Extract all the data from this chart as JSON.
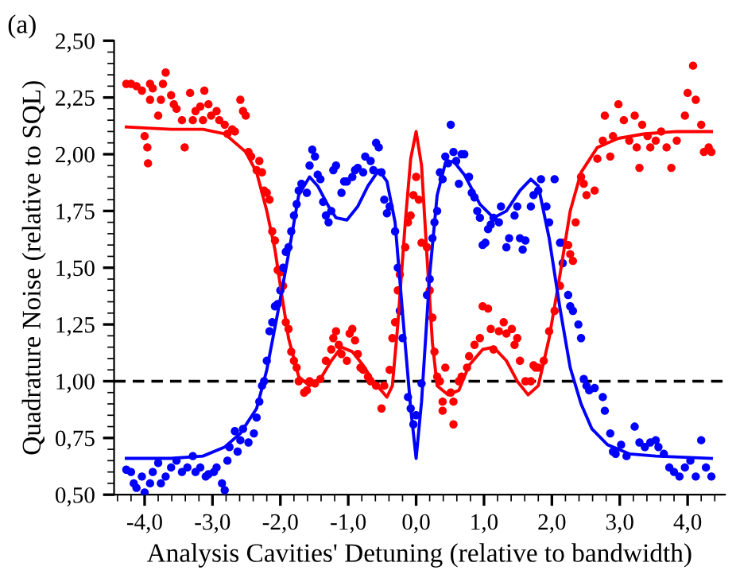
{
  "chart_data": {
    "type": "scatter",
    "xlabel": "Analysis Cavities' Detuning (relative to bandwidth)",
    "ylabel": "Quadrature Noise (relative to SQL)",
    "annotations": [
      "(a)"
    ],
    "xlim": [
      -4.45,
      4.55
    ],
    "ylim": [
      0.5,
      2.5
    ],
    "xticks": [
      {
        "value": -4,
        "label": "-4,0"
      },
      {
        "value": -3,
        "label": "-3,0"
      },
      {
        "value": -2,
        "label": "-2,0"
      },
      {
        "value": -1,
        "label": "-1,0"
      },
      {
        "value": 0,
        "label": "0,0"
      },
      {
        "value": 1,
        "label": "1,0"
      },
      {
        "value": 2,
        "label": "2,0"
      },
      {
        "value": 3,
        "label": "3,0"
      },
      {
        "value": 4,
        "label": "4,0"
      }
    ],
    "yticks": [
      {
        "value": 0.5,
        "label": "0,50"
      },
      {
        "value": 0.75,
        "label": "0,75"
      },
      {
        "value": 1.0,
        "label": "1,00"
      },
      {
        "value": 1.25,
        "label": "1,25"
      },
      {
        "value": 1.5,
        "label": "1,50"
      },
      {
        "value": 1.75,
        "label": "1,75"
      },
      {
        "value": 2.0,
        "label": "2,00"
      },
      {
        "value": 2.25,
        "label": "2,25"
      },
      {
        "value": 2.5,
        "label": "2,50"
      }
    ],
    "grid": false,
    "ref_lines": [
      {
        "axis": "y",
        "value": 1.0,
        "color": "#000000",
        "line_style": "dashed"
      }
    ],
    "series": [
      {
        "marker": "circle",
        "color": "#ff0000",
        "x": [
          -4.27,
          -4.2,
          -4.12,
          -4.04,
          -3.92,
          -3.88,
          -3.92,
          -4.0,
          -3.96,
          -3.95,
          -3.8,
          -3.76,
          -3.73,
          -3.69,
          -3.61,
          -3.57,
          -3.53,
          -3.45,
          -3.41,
          -3.33,
          -3.29,
          -3.25,
          -3.18,
          -3.14,
          -3.12,
          -3.06,
          -3.02,
          -2.94,
          -2.9,
          -2.82,
          -2.78,
          -2.71,
          -2.67,
          -2.59,
          -2.55,
          -2.51,
          -2.47,
          -2.43,
          -2.35,
          -2.31,
          -2.27,
          -2.24,
          -2.2,
          -2.16,
          -2.12,
          -2.08,
          -2.04,
          -2.0,
          -1.96,
          -1.92,
          -1.88,
          -1.84,
          -1.8,
          -1.76,
          -1.73,
          -1.65,
          -1.61,
          -1.57,
          -1.49,
          -1.41,
          -1.33,
          -1.25,
          -1.22,
          -1.18,
          -1.14,
          -1.1,
          -1.02,
          -0.98,
          -0.94,
          -0.9,
          -0.86,
          -0.82,
          -0.78,
          -0.71,
          -0.67,
          -0.59,
          -0.51,
          -0.47,
          -0.39,
          -0.35,
          -0.31,
          -0.27,
          -0.24,
          -0.16,
          -0.12,
          -0.08,
          -0.04,
          0.0,
          0.04,
          0.08,
          0.16,
          0.2,
          0.24,
          0.27,
          0.31,
          0.35,
          0.39,
          0.39,
          0.43,
          0.51,
          0.55,
          0.55,
          0.63,
          0.67,
          0.75,
          0.78,
          0.86,
          0.94,
          0.98,
          1.06,
          1.1,
          1.14,
          1.22,
          1.29,
          1.33,
          1.41,
          1.45,
          1.49,
          1.53,
          1.61,
          1.69,
          1.73,
          1.76,
          1.8,
          1.88,
          1.96,
          2.04,
          2.12,
          2.16,
          2.24,
          2.27,
          2.31,
          2.35,
          2.43,
          2.47,
          2.51,
          2.63,
          2.67,
          2.75,
          2.78,
          2.86,
          2.9,
          2.98,
          3.06,
          3.14,
          3.22,
          3.25,
          3.29,
          3.33,
          3.41,
          3.45,
          3.53,
          3.61,
          3.69,
          3.76,
          3.84,
          3.96,
          4.0,
          4.08,
          4.12,
          4.2,
          4.24,
          4.31,
          4.35
        ],
        "values": [
          2.31,
          2.31,
          2.3,
          2.28,
          2.31,
          2.29,
          2.24,
          2.08,
          2.03,
          1.96,
          2.17,
          2.24,
          2.31,
          2.36,
          2.26,
          2.22,
          2.2,
          2.15,
          2.03,
          2.27,
          2.15,
          2.19,
          2.21,
          2.15,
          2.28,
          2.22,
          2.17,
          2.19,
          2.15,
          2.13,
          2.09,
          2.11,
          2.1,
          2.24,
          2.19,
          2.17,
          2.01,
          1.99,
          1.93,
          1.97,
          1.92,
          1.84,
          1.83,
          1.8,
          1.66,
          1.62,
          1.49,
          1.48,
          1.42,
          1.26,
          1.23,
          1.13,
          1.09,
          1.06,
          1.0,
          0.95,
          0.96,
          1.0,
          0.99,
          1.01,
          1.09,
          1.14,
          1.19,
          1.22,
          1.16,
          1.12,
          1.09,
          1.21,
          1.23,
          1.18,
          1.12,
          1.06,
          1.05,
          1.02,
          1.0,
          0.98,
          0.88,
          0.98,
          1.05,
          1.19,
          1.26,
          1.4,
          1.47,
          1.59,
          1.7,
          1.73,
          1.82,
          1.9,
          1.8,
          1.61,
          1.59,
          1.4,
          1.28,
          1.13,
          1.02,
          1.0,
          0.91,
          0.87,
          1.06,
          0.95,
          0.91,
          0.81,
          1.0,
          1.02,
          1.06,
          1.11,
          1.16,
          1.19,
          1.33,
          1.32,
          1.23,
          1.14,
          1.22,
          1.26,
          1.21,
          1.23,
          1.16,
          1.19,
          1.09,
          1.0,
          1.0,
          1.07,
          1.06,
          1.06,
          1.09,
          1.22,
          1.31,
          1.42,
          1.61,
          1.6,
          1.56,
          1.53,
          1.7,
          1.9,
          1.87,
          1.82,
          1.84,
          1.98,
          2.06,
          2.17,
          1.99,
          2.08,
          2.22,
          2.15,
          2.06,
          2.17,
          2.03,
          1.94,
          2.13,
          2.08,
          2.03,
          2.06,
          2.1,
          2.03,
          1.94,
          2.06,
          2.17,
          2.27,
          2.39,
          2.24,
          2.13,
          2.01,
          2.03,
          2.01
        ]
      },
      {
        "marker": "circle",
        "color": "#0000ff",
        "x": [
          -4.27,
          -4.2,
          -4.16,
          -4.12,
          -4.04,
          -4.0,
          -3.92,
          -3.88,
          -3.8,
          -3.76,
          -3.69,
          -3.61,
          -3.53,
          -3.45,
          -3.37,
          -3.29,
          -3.25,
          -3.18,
          -3.1,
          -3.06,
          -2.98,
          -2.94,
          -2.86,
          -2.82,
          -2.78,
          -2.75,
          -2.67,
          -2.63,
          -2.59,
          -2.55,
          -2.47,
          -2.39,
          -2.35,
          -2.31,
          -2.27,
          -2.24,
          -2.2,
          -2.16,
          -2.12,
          -2.08,
          -2.04,
          -2.0,
          -1.96,
          -1.92,
          -1.88,
          -1.84,
          -1.8,
          -1.76,
          -1.73,
          -1.69,
          -1.61,
          -1.57,
          -1.53,
          -1.49,
          -1.45,
          -1.41,
          -1.37,
          -1.33,
          -1.29,
          -1.25,
          -1.22,
          -1.18,
          -1.1,
          -1.06,
          -1.02,
          -0.94,
          -0.9,
          -0.86,
          -0.78,
          -0.75,
          -0.67,
          -0.63,
          -0.59,
          -0.55,
          -0.51,
          -0.47,
          -0.43,
          -0.39,
          -0.31,
          -0.27,
          -0.24,
          -0.2,
          -0.12,
          -0.08,
          -0.04,
          0.0,
          0.08,
          0.16,
          0.2,
          0.24,
          0.27,
          0.31,
          0.35,
          0.39,
          0.43,
          0.47,
          0.51,
          0.55,
          0.59,
          0.63,
          0.67,
          0.71,
          0.78,
          0.82,
          0.86,
          0.9,
          0.94,
          0.98,
          1.02,
          1.06,
          1.1,
          1.14,
          1.22,
          1.25,
          1.33,
          1.37,
          1.45,
          1.49,
          1.53,
          1.57,
          1.61,
          1.69,
          1.73,
          1.8,
          1.84,
          1.92,
          1.96,
          2.04,
          2.12,
          2.16,
          2.24,
          2.27,
          2.31,
          2.39,
          2.43,
          2.47,
          2.51,
          2.55,
          2.63,
          2.75,
          2.78,
          2.86,
          2.9,
          2.94,
          3.02,
          3.1,
          3.22,
          3.29,
          3.37,
          3.45,
          3.53,
          3.57,
          3.65,
          3.73,
          3.8,
          3.88,
          3.96,
          4.04,
          4.12,
          4.2,
          4.27,
          4.35
        ],
        "values": [
          0.61,
          0.6,
          0.55,
          0.53,
          0.58,
          0.51,
          0.55,
          0.6,
          0.64,
          0.55,
          0.58,
          0.62,
          0.65,
          0.6,
          0.62,
          0.67,
          0.6,
          0.62,
          0.58,
          0.59,
          0.6,
          0.62,
          0.55,
          0.52,
          0.65,
          0.71,
          0.78,
          0.69,
          0.74,
          0.79,
          0.73,
          0.77,
          0.84,
          0.91,
          0.98,
          1.0,
          1.09,
          1.22,
          1.26,
          1.33,
          1.34,
          1.4,
          1.5,
          1.57,
          1.59,
          1.66,
          1.73,
          1.78,
          1.84,
          1.87,
          1.83,
          1.95,
          2.02,
          1.99,
          1.91,
          1.89,
          1.79,
          1.73,
          1.7,
          1.75,
          1.93,
          1.95,
          1.83,
          1.88,
          1.88,
          1.9,
          1.93,
          1.94,
          1.92,
          1.99,
          1.97,
          1.93,
          2.05,
          2.03,
          1.92,
          1.8,
          1.74,
          1.77,
          1.66,
          1.5,
          1.31,
          1.19,
          0.93,
          0.88,
          0.81,
          0.85,
          0.99,
          1.38,
          1.45,
          1.63,
          1.7,
          1.75,
          1.92,
          1.89,
          1.99,
          1.96,
          2.13,
          2.01,
          1.97,
          1.87,
          2.0,
          2.0,
          1.9,
          1.83,
          1.81,
          1.75,
          1.72,
          1.6,
          1.61,
          1.67,
          1.69,
          1.72,
          1.7,
          1.77,
          1.59,
          1.63,
          1.73,
          1.77,
          1.63,
          1.58,
          1.62,
          1.77,
          1.82,
          1.84,
          1.89,
          1.77,
          1.7,
          1.89,
          1.61,
          1.52,
          1.38,
          1.33,
          1.31,
          1.25,
          1.19,
          1.01,
          0.98,
          0.96,
          0.97,
          0.93,
          0.87,
          0.77,
          0.69,
          0.68,
          0.72,
          0.67,
          0.8,
          0.73,
          0.71,
          0.73,
          0.74,
          0.71,
          0.68,
          0.62,
          0.6,
          0.58,
          0.62,
          0.65,
          0.58,
          0.74,
          0.62,
          0.58
        ]
      },
      {
        "type": "line",
        "marker": "none",
        "color": "#ff0000",
        "x": [
          -4.27,
          -3.61,
          -3.14,
          -2.82,
          -2.51,
          -2.35,
          -2.2,
          -2.08,
          -2.0,
          -1.88,
          -1.73,
          -1.57,
          -1.41,
          -1.25,
          -1.1,
          -0.94,
          -0.78,
          -0.63,
          -0.43,
          -0.35,
          -0.27,
          -0.16,
          -0.08,
          0.0,
          0.08,
          0.16,
          0.24,
          0.31,
          0.47,
          0.63,
          0.78,
          0.98,
          1.14,
          1.33,
          1.49,
          1.65,
          1.8,
          1.96,
          2.12,
          2.27,
          2.43,
          2.67,
          2.98,
          3.37,
          3.84,
          4.35
        ],
        "values": [
          2.12,
          2.11,
          2.11,
          2.09,
          2.01,
          1.92,
          1.75,
          1.58,
          1.42,
          1.19,
          1.02,
          0.98,
          1.01,
          1.09,
          1.15,
          1.13,
          1.07,
          1.0,
          0.93,
          0.98,
          1.25,
          1.7,
          1.98,
          2.1,
          1.95,
          1.55,
          1.17,
          0.98,
          0.94,
          0.96,
          1.07,
          1.14,
          1.15,
          1.09,
          1.0,
          0.94,
          0.98,
          1.19,
          1.47,
          1.75,
          1.92,
          2.03,
          2.07,
          2.09,
          2.1,
          2.1
        ]
      },
      {
        "type": "line",
        "marker": "none",
        "color": "#0000ff",
        "x": [
          -4.27,
          -3.61,
          -3.14,
          -2.82,
          -2.59,
          -2.35,
          -2.2,
          -2.04,
          -1.88,
          -1.73,
          -1.57,
          -1.45,
          -1.29,
          -1.18,
          -1.02,
          -0.86,
          -0.71,
          -0.55,
          -0.43,
          -0.31,
          -0.2,
          -0.08,
          0.0,
          0.08,
          0.2,
          0.31,
          0.43,
          0.55,
          0.71,
          0.94,
          1.14,
          1.33,
          1.53,
          1.69,
          1.8,
          1.96,
          2.12,
          2.27,
          2.43,
          2.59,
          2.82,
          3.14,
          3.53,
          4.35
        ],
        "values": [
          0.66,
          0.66,
          0.67,
          0.71,
          0.77,
          0.88,
          1.05,
          1.3,
          1.56,
          1.82,
          1.9,
          1.86,
          1.77,
          1.72,
          1.71,
          1.77,
          1.86,
          1.93,
          1.88,
          1.7,
          1.3,
          0.88,
          0.66,
          0.91,
          1.47,
          1.82,
          1.96,
          1.97,
          1.91,
          1.78,
          1.72,
          1.75,
          1.84,
          1.89,
          1.86,
          1.63,
          1.32,
          1.06,
          0.9,
          0.79,
          0.72,
          0.68,
          0.67,
          0.66
        ]
      }
    ]
  }
}
